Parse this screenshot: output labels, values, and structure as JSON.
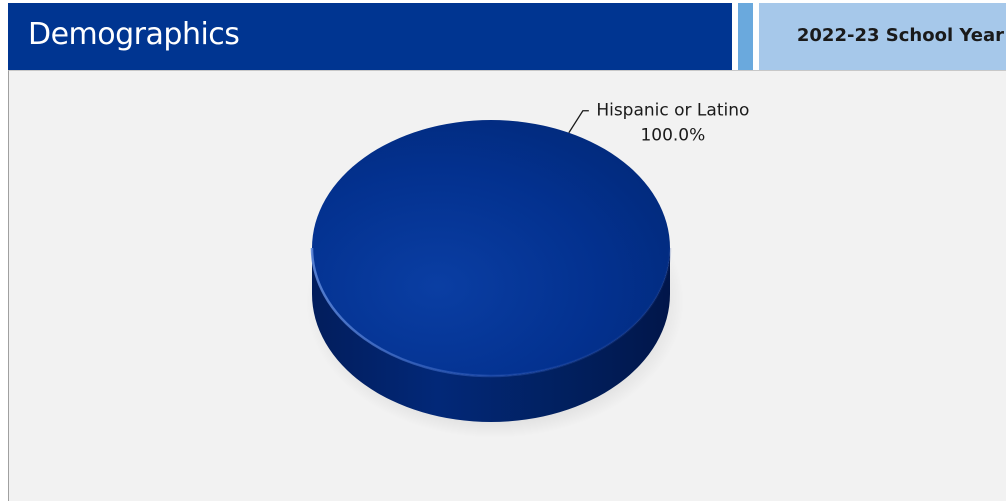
{
  "header": {
    "title": "Demographics",
    "school_year": "2022-23 School Year"
  },
  "colors": {
    "title_bar": "#003591",
    "accent_bar": "#6aa9dd",
    "year_bar": "#a6c8ea",
    "panel_bg": "#f2f2f2",
    "slice_fill": "#022f8c"
  },
  "chart_data": {
    "type": "pie",
    "style": "3d",
    "categories": [
      "Hispanic or Latino"
    ],
    "values": [
      100.0
    ],
    "data_labels": [
      "100.0%"
    ],
    "title": "",
    "legend": "none"
  }
}
